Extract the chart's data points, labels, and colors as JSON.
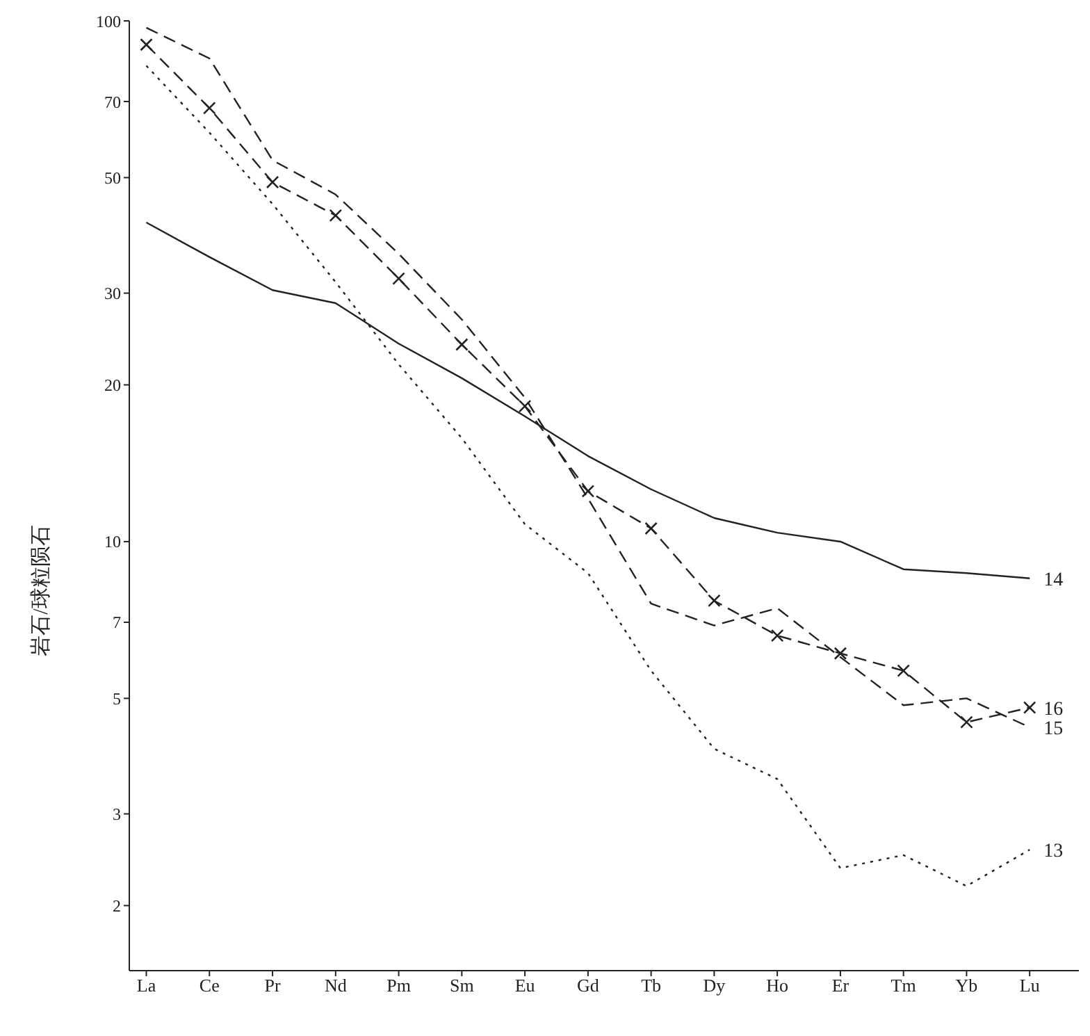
{
  "chart_data": {
    "type": "line",
    "ylabel": "岩石/球粒陨石",
    "categories": [
      "La",
      "Ce",
      "Pr",
      "Nd",
      "Pm",
      "Sm",
      "Eu",
      "Gd",
      "Tb",
      "Dy",
      "Ho",
      "Er",
      "Tm",
      "Yb",
      "Lu"
    ],
    "series": [
      {
        "name": "13",
        "color": "#222222",
        "line_style": "dotted",
        "marker": "none",
        "values": [
          82,
          61,
          44.5,
          31.5,
          21.9,
          15.8,
          10.8,
          8.7,
          5.65,
          4.0,
          3.5,
          2.36,
          2.5,
          2.18,
          2.56
        ]
      },
      {
        "name": "14",
        "color": "#222222",
        "line_style": "solid",
        "marker": "none",
        "values": [
          41,
          35.2,
          30.4,
          28.7,
          24,
          20.6,
          17.4,
          14.6,
          12.6,
          11.1,
          10.4,
          10,
          8.85,
          8.7,
          8.5
        ]
      },
      {
        "name": "15",
        "color": "#222222",
        "line_style": "dashed",
        "marker": "none",
        "values": [
          97,
          84.7,
          54,
          46.4,
          35.7,
          26.7,
          18.9,
          12.1,
          7.6,
          6.9,
          7.45,
          6.0,
          4.85,
          5.0,
          4.4
        ]
      },
      {
        "name": "16",
        "color": "#222222",
        "line_style": "dashed",
        "marker": "cross",
        "values": [
          90,
          68,
          49,
          42.3,
          32,
          23.9,
          18.2,
          12.5,
          10.6,
          7.7,
          6.6,
          6.1,
          5.65,
          4.5,
          4.8
        ]
      }
    ],
    "ylim": [
      1.5,
      100
    ],
    "yticks": [
      2,
      3,
      5,
      7,
      10,
      20,
      30,
      50,
      70,
      100
    ],
    "log": true,
    "grid": false,
    "legend": false
  }
}
